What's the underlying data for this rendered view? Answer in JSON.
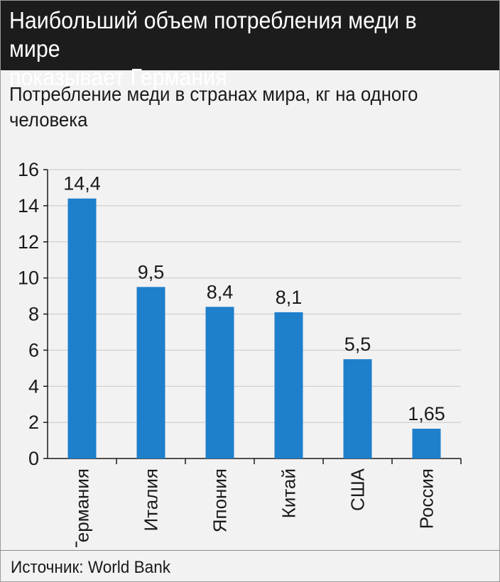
{
  "header": {
    "title": "Наибольший объем потребления меди в мире\nпоказывает Германия"
  },
  "chart_data": {
    "type": "bar",
    "subtitle": "Потребление меди в странах мира, кг на одного\nчеловека",
    "categories": [
      "Германия",
      "Италия",
      "Япония",
      "Китай",
      "США",
      "Россия"
    ],
    "values": [
      14.4,
      9.5,
      8.4,
      8.1,
      5.5,
      1.65
    ],
    "value_labels": [
      "14,4",
      "9,5",
      "8,4",
      "8,1",
      "5,5",
      "1,65"
    ],
    "ylim": [
      0,
      16
    ],
    "yticks": [
      "0",
      "2",
      "4",
      "6",
      "8",
      "10",
      "12",
      "14",
      "16"
    ],
    "grid": true,
    "xlabel": "",
    "ylabel": "",
    "bar_color": "#1e7fcb"
  },
  "footer": {
    "source": "Источник: World Bank"
  }
}
